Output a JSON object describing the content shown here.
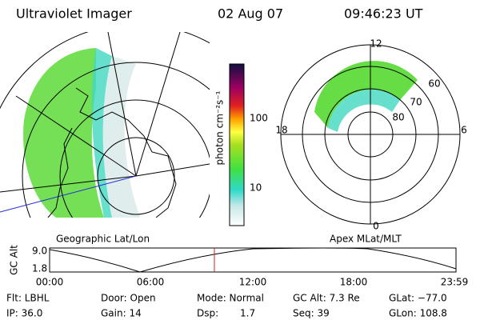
{
  "header": {
    "instrument": "Ultraviolet Imager",
    "date": "02 Aug 07",
    "time": "09:46:23 UT"
  },
  "left_panel": {
    "label": "Geographic Lat/Lon"
  },
  "colorbar": {
    "label": "photon cm⁻²s⁻¹",
    "ticks": [
      "100",
      "10"
    ]
  },
  "right_panel": {
    "label": "Apex MLat/MLT",
    "mlt_labels": [
      "12",
      "18",
      "6",
      "0"
    ],
    "lat_labels": [
      "60",
      "70",
      "80"
    ]
  },
  "altitude_plot": {
    "label": "GC Alt",
    "y_labels": [
      "9.0",
      "1.8"
    ],
    "x_labels": [
      "00:00",
      "06:00",
      "12:00",
      "18:00",
      "23:59"
    ]
  },
  "footer": {
    "rows": [
      [
        "Flt: LBHL",
        "Door: Open",
        "Mode: Normal",
        "GC Alt: 7.3 Re",
        "GLat: −77.0"
      ],
      [
        "IP: 36.0",
        "Gain: 14",
        "Dsp:",
        "1.7",
        "Seq: 39",
        "GLon: 108.8"
      ]
    ]
  }
}
